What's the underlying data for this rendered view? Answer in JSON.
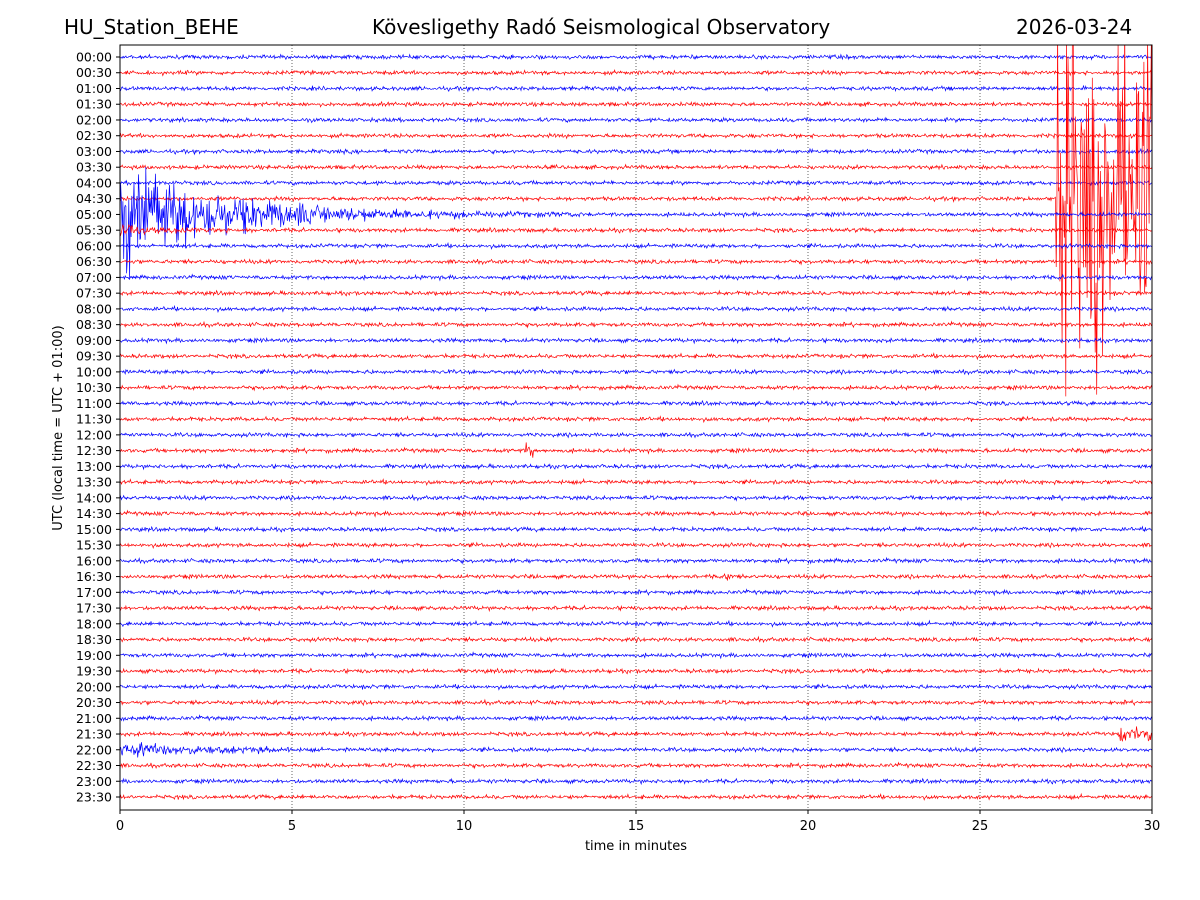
{
  "header": {
    "station": "HU_Station_BEHE",
    "observatory": "Kövesligethy Radó Seismological Observatory",
    "date": "2026-03-24"
  },
  "chart_data": {
    "type": "line",
    "title": "Kövesligethy Radó Seismological Observatory",
    "xlabel": "time in minutes",
    "ylabel": "UTC (local time = UTC + 01:00)",
    "xlim": [
      0,
      30
    ],
    "xticks": [
      "0",
      "5",
      "10",
      "15",
      "20",
      "25",
      "30"
    ],
    "grid": "vertical dotted",
    "row_labels": [
      "00:00",
      "00:30",
      "01:00",
      "01:30",
      "02:00",
      "02:30",
      "03:00",
      "03:30",
      "04:00",
      "04:30",
      "05:00",
      "05:30",
      "06:00",
      "06:30",
      "07:00",
      "07:30",
      "08:00",
      "08:30",
      "09:00",
      "09:30",
      "10:00",
      "10:30",
      "11:00",
      "11:30",
      "12:00",
      "12:30",
      "13:00",
      "13:30",
      "14:00",
      "14:30",
      "15:00",
      "15:30",
      "16:00",
      "16:30",
      "17:00",
      "17:30",
      "18:00",
      "18:30",
      "19:00",
      "19:30",
      "20:00",
      "20:30",
      "21:00",
      "21:30",
      "22:00",
      "22:30",
      "23:00",
      "23:30"
    ],
    "series_colors": [
      "#0000ff",
      "#ff0000"
    ],
    "noise_level": 0.12,
    "events": [
      {
        "row": "05:00",
        "start_min": 0.0,
        "end_min": 14.0,
        "peak_amplitude": 5.0,
        "decay": 0.35
      },
      {
        "row": "05:30",
        "start_min": 0.0,
        "end_min": 3.5,
        "peak_amplitude": 0.3,
        "decay": 0.8
      },
      {
        "row": "04:30",
        "start_min": 27.2,
        "end_min": 30.0,
        "peak_amplitude": 14.0,
        "decay": 0.05
      },
      {
        "row": "04:30",
        "start_min": 27.35,
        "end_min": 27.55,
        "peak_amplitude": 26.0,
        "decay": 0.0
      },
      {
        "row": "22:00",
        "start_min": 0.0,
        "end_min": 5.0,
        "peak_amplitude": 0.55,
        "decay": 0.4
      },
      {
        "row": "21:30",
        "start_min": 29.0,
        "end_min": 30.0,
        "peak_amplitude": 0.7,
        "decay": 0.0
      },
      {
        "row": "12:30",
        "start_min": 11.8,
        "end_min": 12.0,
        "peak_amplitude": 0.5,
        "decay": 0.0
      },
      {
        "row": "16:30",
        "start_min": 17.6,
        "end_min": 17.8,
        "peak_amplitude": 0.5,
        "decay": 0.0
      }
    ]
  }
}
